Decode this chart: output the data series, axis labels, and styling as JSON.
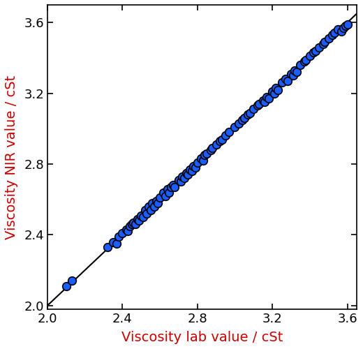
{
  "x_data": [
    2.1,
    2.13,
    2.32,
    2.35,
    2.37,
    2.38,
    2.4,
    2.42,
    2.43,
    2.44,
    2.45,
    2.46,
    2.47,
    2.48,
    2.49,
    2.5,
    2.51,
    2.52,
    2.53,
    2.54,
    2.55,
    2.56,
    2.57,
    2.58,
    2.59,
    2.6,
    2.62,
    2.63,
    2.64,
    2.65,
    2.66,
    2.67,
    2.68,
    2.7,
    2.71,
    2.72,
    2.73,
    2.74,
    2.75,
    2.76,
    2.77,
    2.78,
    2.79,
    2.8,
    2.82,
    2.83,
    2.84,
    2.85,
    2.87,
    2.88,
    2.9,
    2.92,
    2.93,
    2.95,
    2.97,
    3.0,
    3.02,
    3.04,
    3.05,
    3.07,
    3.08,
    3.1,
    3.12,
    3.13,
    3.15,
    3.16,
    3.17,
    3.18,
    3.2,
    3.21,
    3.22,
    3.23,
    3.25,
    3.27,
    3.28,
    3.3,
    3.31,
    3.32,
    3.33,
    3.35,
    3.37,
    3.38,
    3.4,
    3.42,
    3.43,
    3.45,
    3.47,
    3.48,
    3.5,
    3.52,
    3.53,
    3.55,
    3.57,
    3.58,
    3.59,
    3.6
  ],
  "y_data": [
    2.11,
    2.14,
    2.33,
    2.36,
    2.35,
    2.39,
    2.41,
    2.43,
    2.42,
    2.45,
    2.46,
    2.47,
    2.46,
    2.49,
    2.48,
    2.51,
    2.5,
    2.54,
    2.52,
    2.56,
    2.54,
    2.58,
    2.56,
    2.59,
    2.58,
    2.61,
    2.64,
    2.62,
    2.66,
    2.64,
    2.67,
    2.68,
    2.67,
    2.71,
    2.7,
    2.73,
    2.72,
    2.75,
    2.74,
    2.77,
    2.76,
    2.79,
    2.78,
    2.81,
    2.83,
    2.82,
    2.85,
    2.86,
    2.88,
    2.89,
    2.91,
    2.93,
    2.94,
    2.96,
    2.98,
    3.01,
    3.03,
    3.05,
    3.06,
    3.08,
    3.09,
    3.11,
    3.13,
    3.14,
    3.16,
    3.15,
    3.18,
    3.17,
    3.21,
    3.2,
    3.23,
    3.22,
    3.26,
    3.28,
    3.27,
    3.31,
    3.3,
    3.33,
    3.32,
    3.36,
    3.38,
    3.39,
    3.41,
    3.43,
    3.44,
    3.46,
    3.48,
    3.49,
    3.51,
    3.53,
    3.54,
    3.56,
    3.55,
    3.57,
    3.58,
    3.59
  ],
  "line_x": [
    2.0,
    3.67
  ],
  "line_y": [
    2.0,
    3.67
  ],
  "xlim": [
    2.0,
    3.65
  ],
  "ylim": [
    1.98,
    3.7
  ],
  "xticks": [
    2.0,
    2.4,
    2.8,
    3.2,
    3.6
  ],
  "yticks": [
    2.0,
    2.4,
    2.8,
    3.2,
    3.6
  ],
  "xlabel": "Viscosity lab value / cSt",
  "ylabel": "Viscosity NIR value / cSt",
  "label_color": "#cc0000",
  "marker_color": "#1a5eff",
  "marker_edge_color": "#000000",
  "marker_size": 70,
  "marker_edge_width": 1.2,
  "line_color": "#000000",
  "line_width": 1.5,
  "background_color": "#ffffff",
  "tick_label_fontsize": 13,
  "axis_label_fontsize": 14
}
